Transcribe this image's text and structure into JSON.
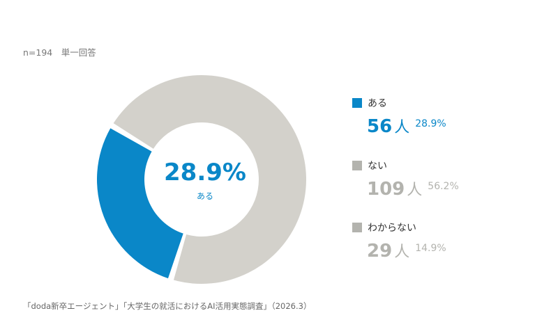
{
  "header": {
    "note": "n=194　単一回答"
  },
  "center": {
    "percent": "28.9%",
    "label": "ある"
  },
  "legend": [
    {
      "label": "ある",
      "count": "56",
      "unit": "人",
      "percent": "28.9%",
      "color": "#0a87c8"
    },
    {
      "label": "ない",
      "count": "109",
      "unit": "人",
      "percent": "56.2%",
      "color": "#b3b3ae"
    },
    {
      "label": "わからない",
      "count": "29",
      "unit": "人",
      "percent": "14.9%",
      "color": "#b3b3ae"
    }
  ],
  "chart_data": {
    "type": "pie",
    "categories": [
      "ある",
      "ない",
      "わからない"
    ],
    "values": [
      56,
      109,
      29
    ],
    "percentages": [
      28.9,
      56.2,
      14.9
    ],
    "colors": [
      "#0a87c8",
      "#d3d1cb",
      "#d3d1cb"
    ],
    "donut": true
  },
  "footer": {
    "source": "「doda新卒エージェント」「大学生の就活におけるAI活用実態調査」（2026.3）"
  }
}
